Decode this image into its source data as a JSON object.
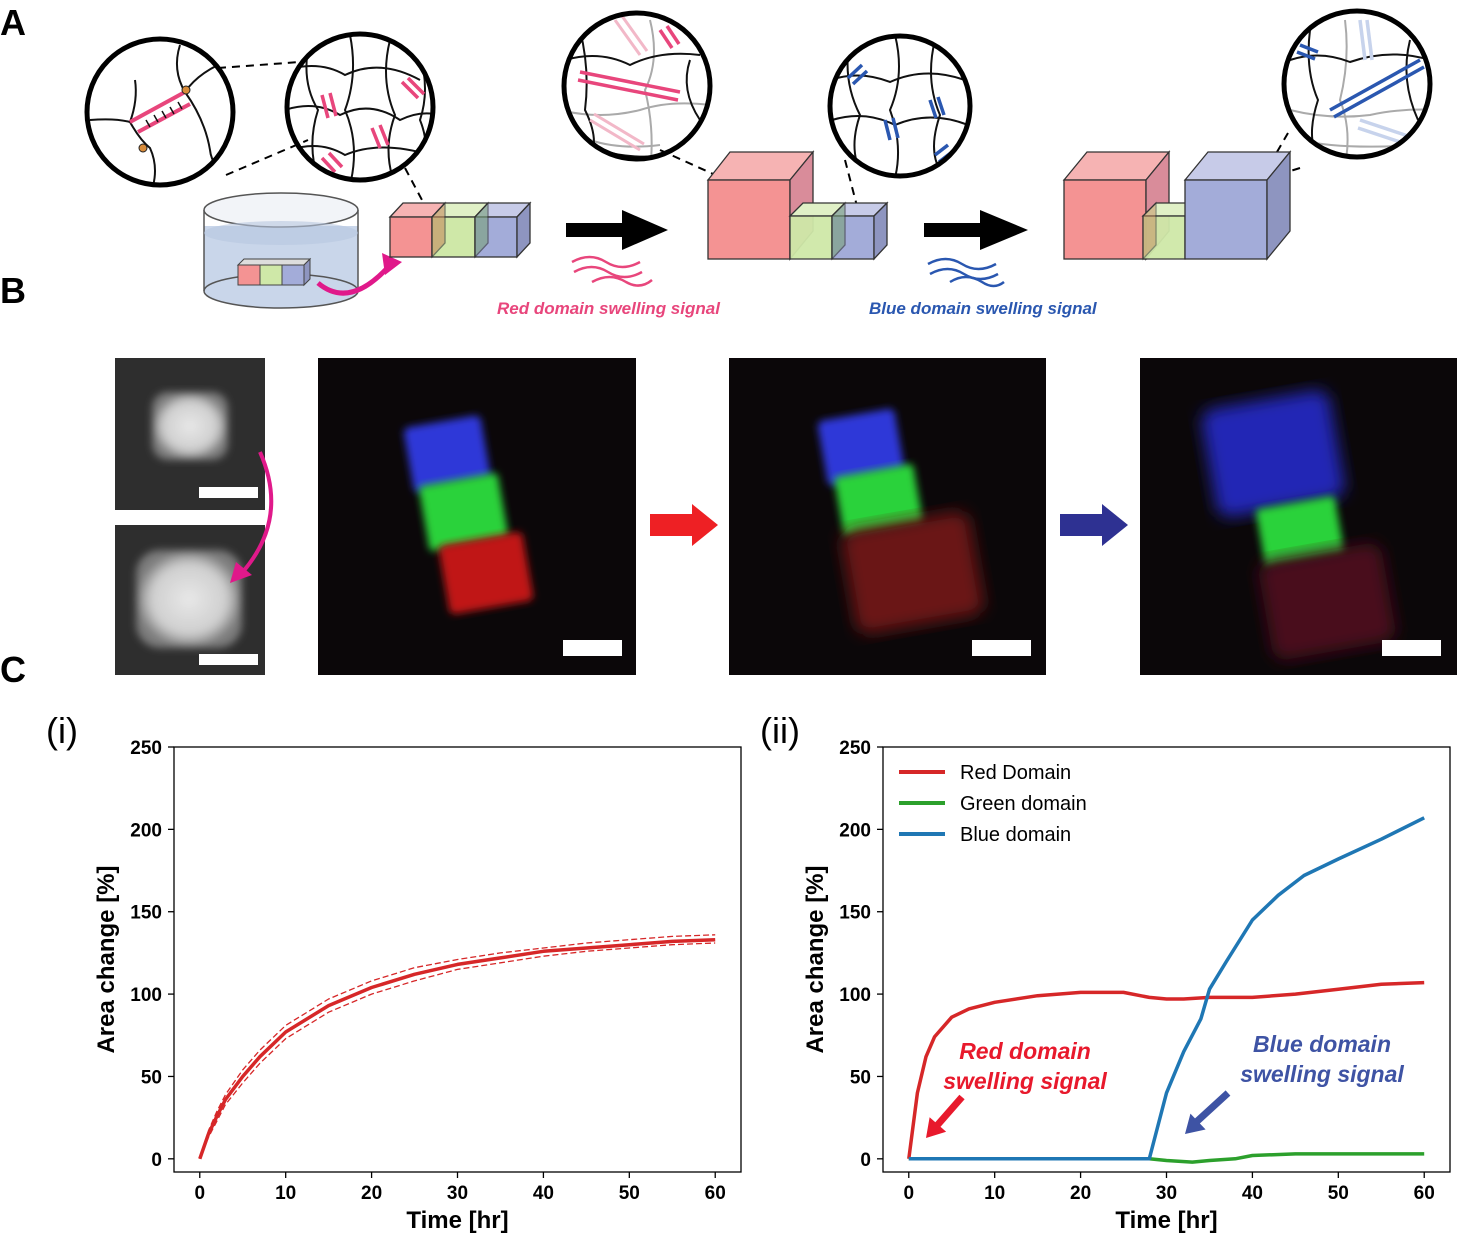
{
  "panels": {
    "A": "A",
    "B": "B",
    "C": "C"
  },
  "schematic": {
    "red_signal_label": "Red domain swelling signal",
    "blue_signal_label": "Blue domain swelling signal",
    "colors": {
      "red": "#e8467c",
      "blue": "#2a57b0",
      "cube_red": "#f49393",
      "cube_green": "#cfe8a8",
      "cube_blue": "#a3acd9"
    }
  },
  "charts_text": {
    "i": "(i)",
    "ii": "(ii)"
  },
  "chart_data": [
    {
      "type": "line",
      "panel": "(i)",
      "xlabel": "Time [hr]",
      "ylabel": "Area change [%]",
      "xlim": [
        -3,
        63
      ],
      "ylim": [
        -8,
        250
      ],
      "xticks": [
        0,
        10,
        20,
        30,
        40,
        50,
        60
      ],
      "yticks": [
        0,
        50,
        100,
        150,
        200,
        250
      ],
      "series": [
        {
          "color": "#d62728",
          "style": "solid",
          "x": [
            0,
            1,
            2,
            3,
            5,
            7,
            10,
            15,
            20,
            25,
            30,
            35,
            40,
            45,
            50,
            55,
            60
          ],
          "y": [
            0,
            15,
            26,
            36,
            50,
            62,
            77,
            93,
            104,
            112,
            118,
            122,
            126,
            128,
            130,
            132,
            133
          ]
        },
        {
          "color": "#d62728",
          "style": "dashed",
          "x": [
            0,
            1,
            2,
            3,
            5,
            7,
            10,
            15,
            20,
            25,
            30,
            35,
            40,
            45,
            50,
            55,
            60
          ],
          "y": [
            0,
            17,
            29,
            39,
            54,
            66,
            81,
            97,
            108,
            116,
            121,
            125,
            128,
            131,
            133,
            135,
            136
          ]
        },
        {
          "color": "#d62728",
          "style": "dashed",
          "x": [
            0,
            1,
            2,
            3,
            5,
            7,
            10,
            15,
            20,
            25,
            30,
            35,
            40,
            45,
            50,
            55,
            60
          ],
          "y": [
            0,
            13,
            23,
            33,
            46,
            58,
            73,
            89,
            100,
            108,
            115,
            119,
            123,
            126,
            128,
            130,
            131
          ]
        }
      ]
    },
    {
      "type": "line",
      "panel": "(ii)",
      "xlabel": "Time [hr]",
      "ylabel": "Area change [%]",
      "xlim": [
        -3,
        63
      ],
      "ylim": [
        -8,
        250
      ],
      "xticks": [
        0,
        10,
        20,
        30,
        40,
        50,
        60
      ],
      "yticks": [
        0,
        50,
        100,
        150,
        200,
        250
      ],
      "legend": "top-left",
      "series": [
        {
          "name": "Red Domain",
          "color": "#d62728",
          "x": [
            0,
            1,
            2,
            3,
            5,
            7,
            10,
            15,
            20,
            25,
            28,
            30,
            32,
            35,
            40,
            45,
            50,
            55,
            60
          ],
          "y": [
            0,
            40,
            62,
            74,
            86,
            91,
            95,
            99,
            101,
            101,
            98,
            97,
            97,
            98,
            98,
            100,
            103,
            106,
            107
          ]
        },
        {
          "name": "Green domain",
          "color": "#2ca02c",
          "x": [
            0,
            10,
            20,
            28,
            30,
            33,
            35,
            38,
            40,
            45,
            50,
            55,
            60
          ],
          "y": [
            0,
            0,
            0,
            0,
            -1,
            -2,
            -1,
            0,
            2,
            3,
            3,
            3,
            3
          ]
        },
        {
          "name": "Blue domain",
          "color": "#1f77b4",
          "x": [
            0,
            10,
            20,
            28,
            30,
            32,
            34,
            35,
            37,
            40,
            43,
            46,
            50,
            55,
            60
          ],
          "y": [
            0,
            0,
            0,
            0,
            40,
            65,
            85,
            103,
            120,
            145,
            160,
            172,
            182,
            194,
            207
          ]
        }
      ],
      "annotations": [
        {
          "text": [
            "Red domain",
            "swelling signal"
          ],
          "color": "#e8192c"
        },
        {
          "text": [
            "Blue domain",
            "swelling signal"
          ],
          "color": "#3e53a4"
        }
      ]
    }
  ]
}
